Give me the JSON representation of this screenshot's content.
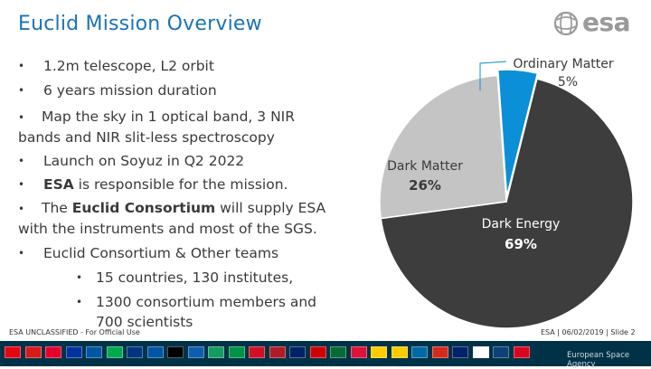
{
  "slide": {
    "title": "Euclid Mission Overview",
    "logo_text": "esa",
    "bullets": [
      {
        "text": "1.2m telescope, L2 orbit"
      },
      {
        "text": "6 years mission duration"
      },
      {
        "text": "Map the sky in 1 optical band, 3 NIR bands and NIR slit-less spectroscopy"
      },
      {
        "text": "Launch on Soyuz in Q2 2022"
      },
      {
        "pre": "",
        "strong": "ESA",
        "post": " is responsible for the mission."
      },
      {
        "pre": "The ",
        "strong": "Euclid Consortium",
        "post": " will supply ESA with the instruments and most of the SGS."
      },
      {
        "text": "Euclid Consortium & Other teams"
      },
      {
        "text": "15 countries, 130 institutes,"
      },
      {
        "text": " 1300 consortium members and 700 scientists"
      }
    ],
    "bullet_symbol": "•",
    "footer_left": "ESA UNCLASSIFIED - For Official Use",
    "footer_right": "ESA | 06/02/2019 | Slide  2",
    "agency_name": "European Space Agency"
  },
  "chart_data": {
    "type": "pie",
    "title": "",
    "slices": [
      {
        "name": "Ordinary Matter",
        "label": "5%",
        "value": 5,
        "color": "#0b8fd6"
      },
      {
        "name": "Dark Energy",
        "label": "69%",
        "value": 69,
        "color": "#3d3d3d"
      },
      {
        "name": "Dark Matter",
        "label": "26%",
        "value": 26,
        "color": "#c4c4c4"
      }
    ],
    "start_angle_deg": -4,
    "label_placement": "outside for Ordinary Matter, inside for others"
  },
  "flags": [
    "#e30613",
    "#d71a1a",
    "#e4002b",
    "#0033a0",
    "#0055a4",
    "#00a94f",
    "#003580",
    "#0055a4",
    "#000000",
    "#0d5eaf",
    "#169b62",
    "#009246",
    "#ce1126",
    "#ae1c28",
    "#002366",
    "#cc0001",
    "#046a38",
    "#dc143c",
    "#ffcc00",
    "#fecb00",
    "#006aa7",
    "#d52b1e",
    "#012169",
    "#ffffff",
    "#0c4076",
    "#d80621"
  ],
  "colors": {
    "title": "#1b73b8",
    "footer_bar": "#003247"
  }
}
